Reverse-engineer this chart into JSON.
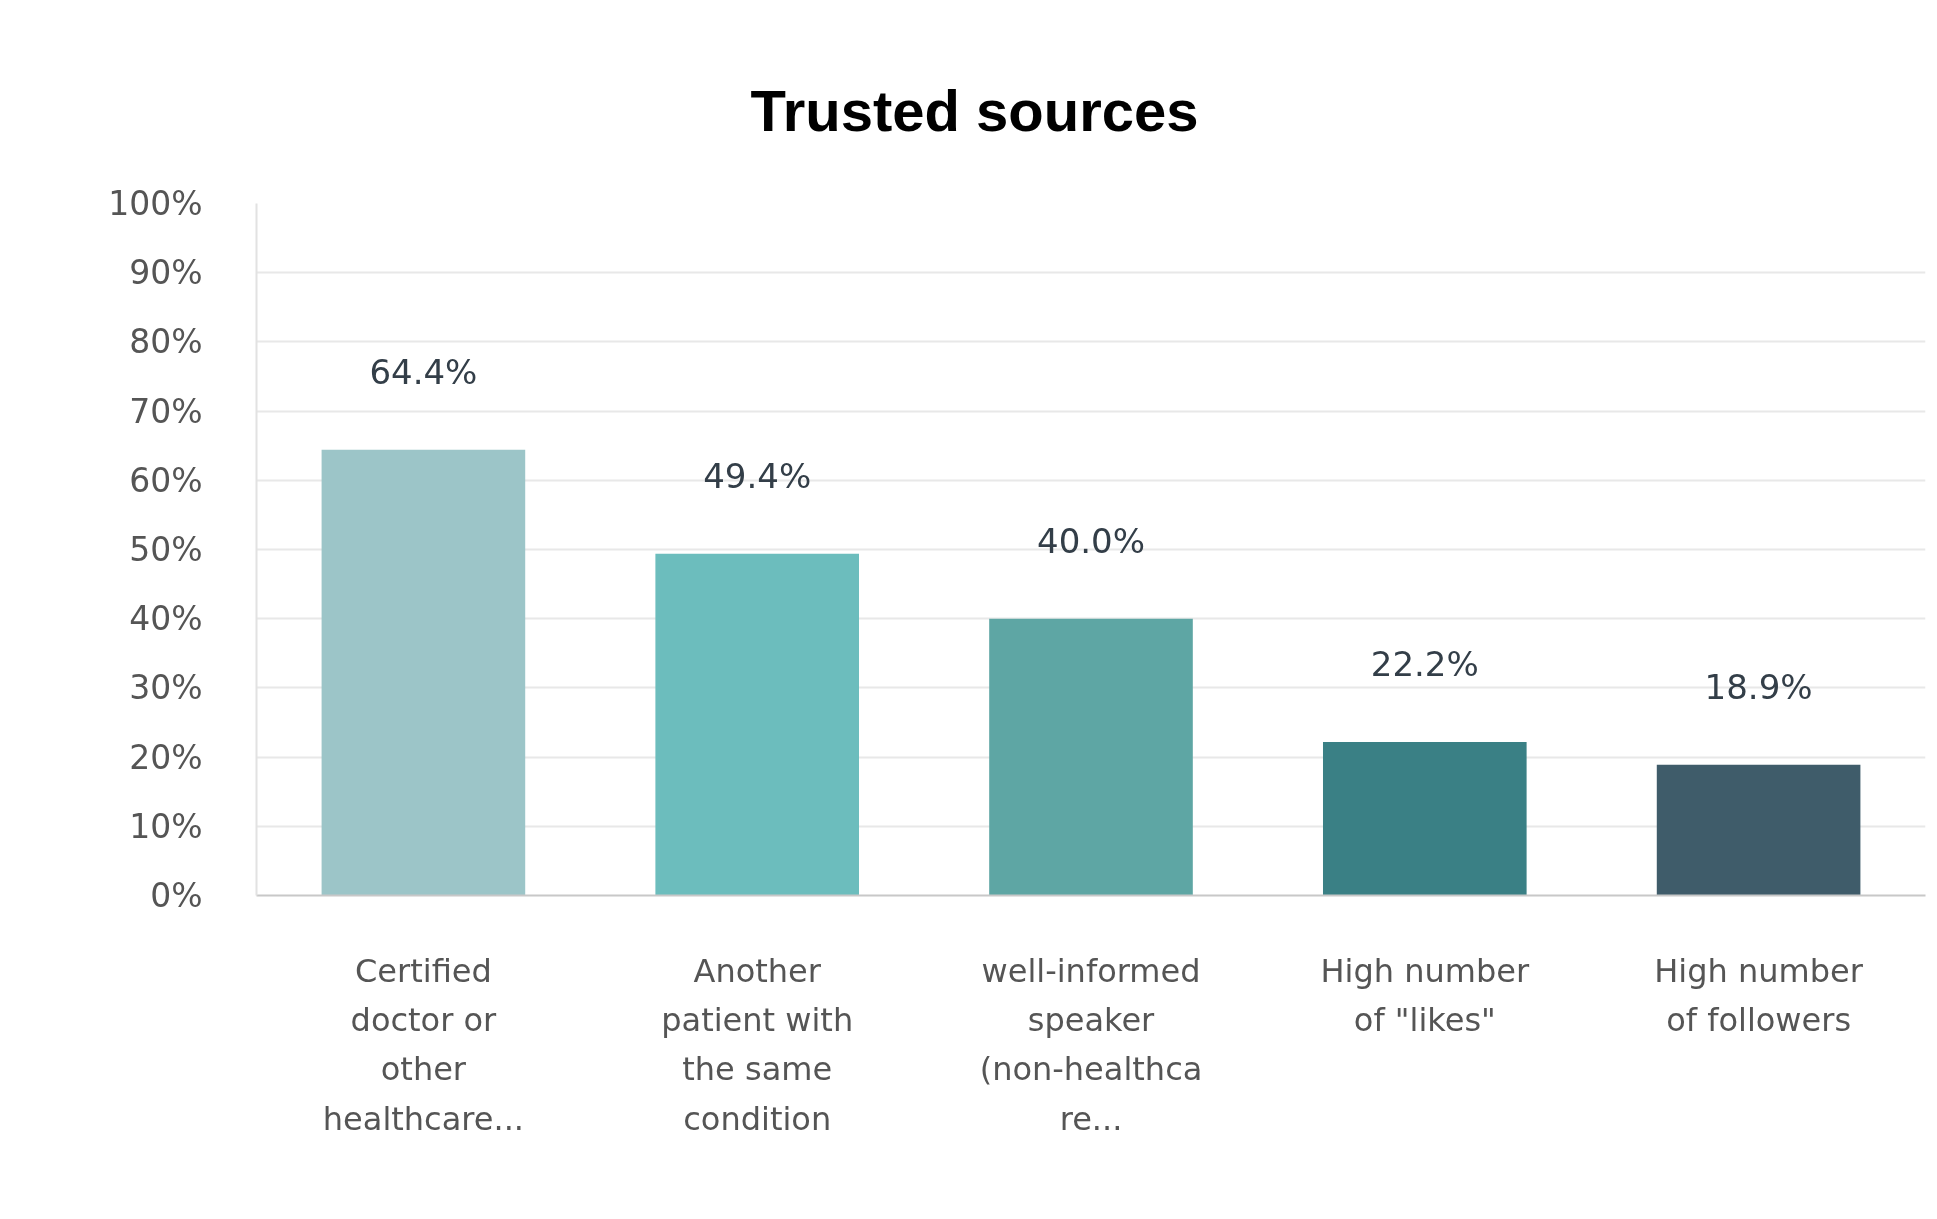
{
  "chart_data": {
    "type": "bar",
    "title": "Trusted sources",
    "categories": [
      "Certified\ndoctor or\nother\nhealthcare...",
      "Another\npatient with\nthe same\ncondition",
      "well-informed\nspeaker\n(non-healthca\nre...",
      "High number\nof \"likes\"",
      "High number\nof followers"
    ],
    "values": [
      64.4,
      49.4,
      40.0,
      22.2,
      18.9
    ],
    "colors": [
      "#9cc5c8",
      "#6cbdbd",
      "#5ea6a4",
      "#3a8085",
      "#3f5c6a"
    ],
    "value_labels": [
      "64.4%",
      "49.4%",
      "40.0%",
      "22.2%",
      "18.9%"
    ],
    "ylim": [
      0,
      100
    ],
    "yticks": [
      {
        "value": 0,
        "label": "0%"
      },
      {
        "value": 10,
        "label": "10%"
      },
      {
        "value": 20,
        "label": "20%"
      },
      {
        "value": 30,
        "label": "30%"
      },
      {
        "value": 40,
        "label": "40%"
      },
      {
        "value": 50,
        "label": "50%"
      },
      {
        "value": 60,
        "label": "60%"
      },
      {
        "value": 70,
        "label": "70%"
      },
      {
        "value": 80,
        "label": "80%"
      },
      {
        "value": 90,
        "label": "90%"
      },
      {
        "value": 100,
        "label": "100%"
      }
    ],
    "grid": "y"
  }
}
